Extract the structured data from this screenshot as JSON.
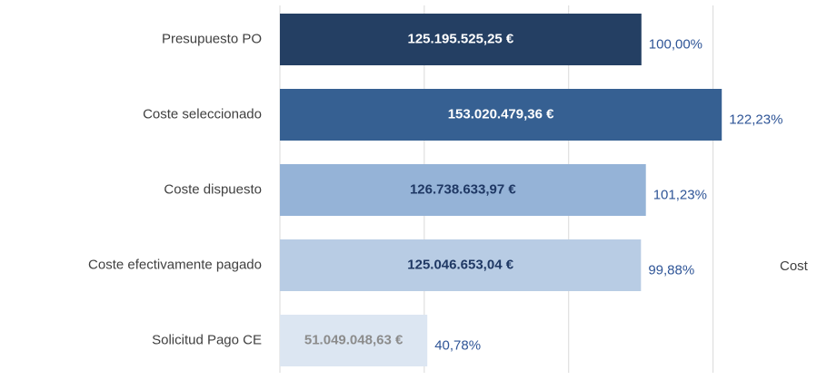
{
  "chart_data": {
    "type": "hbar",
    "categories": [
      "Presupuesto PO",
      "Coste seleccionado",
      "Coste dispuesto",
      "Coste efectivamente pagado",
      "Solicitud Pago CE"
    ],
    "values": [
      125195525.25,
      153020479.36,
      126738633.97,
      125046653.04,
      51049048.63
    ],
    "value_labels": [
      "125.195.525,25 €",
      "153.020.479,36 €",
      "126.738.633,97 €",
      "125.046.653,04 €",
      "51.049.048,63 €"
    ],
    "colors": [
      "#243f63",
      "#366092",
      "#95b3d7",
      "#b8cce4",
      "#dce6f2"
    ],
    "label_colors": [
      "#ffffff",
      "#ffffff",
      "#1f3864",
      "#1f3864",
      "#8c8c8c"
    ],
    "percentages": [
      100.0,
      122.23,
      101.23,
      99.88,
      40.78
    ],
    "percentage_labels": [
      "100,00%",
      "122,23%",
      "101,23%",
      "99,88%",
      "40,78%"
    ],
    "xlim": [
      0,
      186000000
    ],
    "xticks": [
      0,
      50000000,
      100000000,
      150000000
    ],
    "grid": true,
    "annotation": "Cost"
  }
}
